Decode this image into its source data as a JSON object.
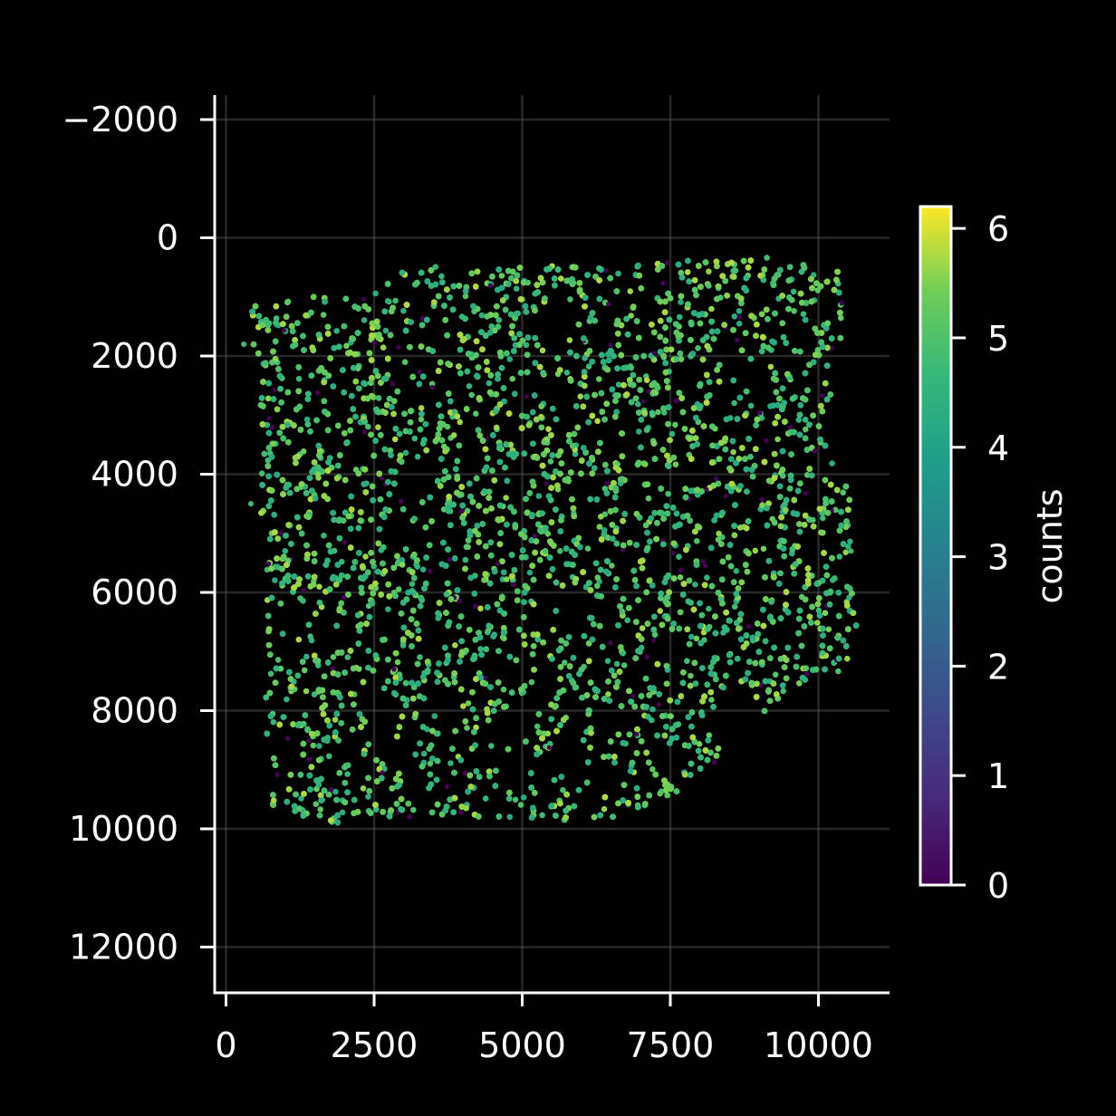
{
  "chart_data": {
    "type": "scatter",
    "title": "",
    "xlabel": "",
    "ylabel": "",
    "x_ticks": [
      "0",
      "2500",
      "5000",
      "7500",
      "10000"
    ],
    "y_ticks": [
      "−2000",
      "0",
      "2000",
      "4000",
      "6000",
      "8000",
      "10000",
      "12000"
    ],
    "xlim": [
      -200,
      11200
    ],
    "ylim": [
      12800,
      -2400
    ],
    "y_inverted": true,
    "grid": true,
    "background": "#000000",
    "marker_size": "small",
    "colormap": "viridis",
    "colorbar": {
      "label": "counts",
      "ticks": [
        "0",
        "1",
        "2",
        "3",
        "4",
        "5",
        "6"
      ],
      "vmin": 0,
      "vmax": 6.2,
      "placement": "right"
    },
    "tissue_outline": [
      [
        400,
        1000
      ],
      [
        1500,
        1000
      ],
      [
        2500,
        900
      ],
      [
        3200,
        400
      ],
      [
        4500,
        500
      ],
      [
        5500,
        450
      ],
      [
        6500,
        500
      ],
      [
        7500,
        400
      ],
      [
        8500,
        300
      ],
      [
        10300,
        400
      ],
      [
        10500,
        1300
      ],
      [
        10300,
        2100
      ],
      [
        10100,
        3300
      ],
      [
        10500,
        4200
      ],
      [
        10600,
        5200
      ],
      [
        10650,
        6500
      ],
      [
        10500,
        7300
      ],
      [
        9500,
        7800
      ],
      [
        8700,
        8200
      ],
      [
        8300,
        9000
      ],
      [
        7400,
        9700
      ],
      [
        6500,
        9900
      ],
      [
        5000,
        9800
      ],
      [
        3800,
        9800
      ],
      [
        2600,
        9800
      ],
      [
        1600,
        10000
      ],
      [
        800,
        9700
      ],
      [
        650,
        8500
      ],
      [
        700,
        6500
      ],
      [
        600,
        4800
      ],
      [
        550,
        3200
      ],
      [
        450,
        1800
      ]
    ],
    "value_distribution": {
      "typical_range": [
        4.2,
        5.8
      ],
      "outlier_value": 0,
      "outlier_fraction": 0.035
    }
  }
}
